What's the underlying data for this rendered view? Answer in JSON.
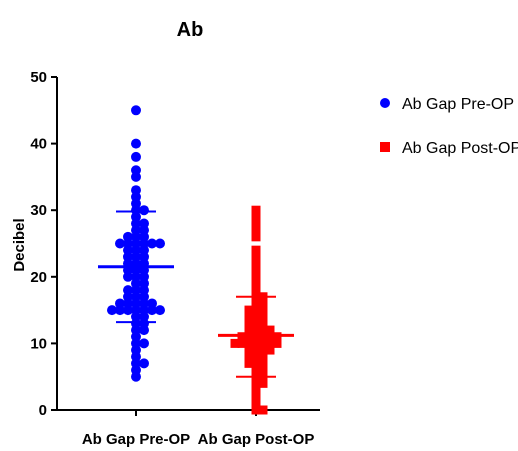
{
  "chart_data": {
    "type": "scatter",
    "title": "Ab",
    "xlabel": "",
    "ylabel": "Decibel",
    "ylim": [
      0,
      50
    ],
    "yticks": [
      0,
      10,
      20,
      30,
      40,
      50
    ],
    "grid": false,
    "legend_position": "top-right",
    "categories": [
      "Ab Gap Pre-OP",
      "Ab Gap Post-OP"
    ],
    "series": [
      {
        "name": "Ab Gap Pre-OP",
        "marker": "circle",
        "color": "#0000ff",
        "mean": 21.5,
        "sd_upper": 29.8,
        "sd_lower": 13.2,
        "values": [
          45,
          40,
          38,
          36,
          35,
          33,
          32,
          31,
          30,
          30,
          29,
          28,
          28,
          27,
          27,
          26,
          26,
          26,
          25,
          25,
          25,
          25,
          25,
          25,
          24,
          24,
          24,
          23,
          23,
          23,
          22,
          22,
          22,
          21,
          21,
          21,
          20,
          20,
          20,
          19,
          19,
          18,
          18,
          18,
          17,
          17,
          17,
          16,
          16,
          16,
          16,
          16,
          15,
          15,
          15,
          15,
          15,
          15,
          15,
          14,
          14,
          13,
          13,
          12,
          12,
          11,
          10,
          10,
          9,
          8,
          7,
          7,
          6,
          5
        ]
      },
      {
        "name": "Ab Gap Post-OP",
        "marker": "square",
        "color": "#ff0000",
        "mean": 11.2,
        "sd_upper": 17.0,
        "sd_lower": 5.0,
        "values": [
          30,
          29,
          28,
          27,
          26,
          24,
          23,
          22,
          21,
          20,
          19,
          18,
          17,
          17,
          16,
          16,
          15,
          15,
          15,
          14,
          14,
          14,
          13,
          13,
          13,
          12,
          12,
          12,
          12,
          11,
          11,
          11,
          11,
          11,
          11,
          10,
          10,
          10,
          10,
          10,
          10,
          10,
          9,
          9,
          9,
          9,
          8,
          8,
          8,
          7,
          7,
          7,
          6,
          6,
          5,
          5,
          4,
          4,
          3,
          2,
          1,
          0,
          0
        ]
      }
    ]
  },
  "colors": {
    "pre": "#0000ff",
    "post": "#ff0000",
    "axis": "#000000"
  }
}
